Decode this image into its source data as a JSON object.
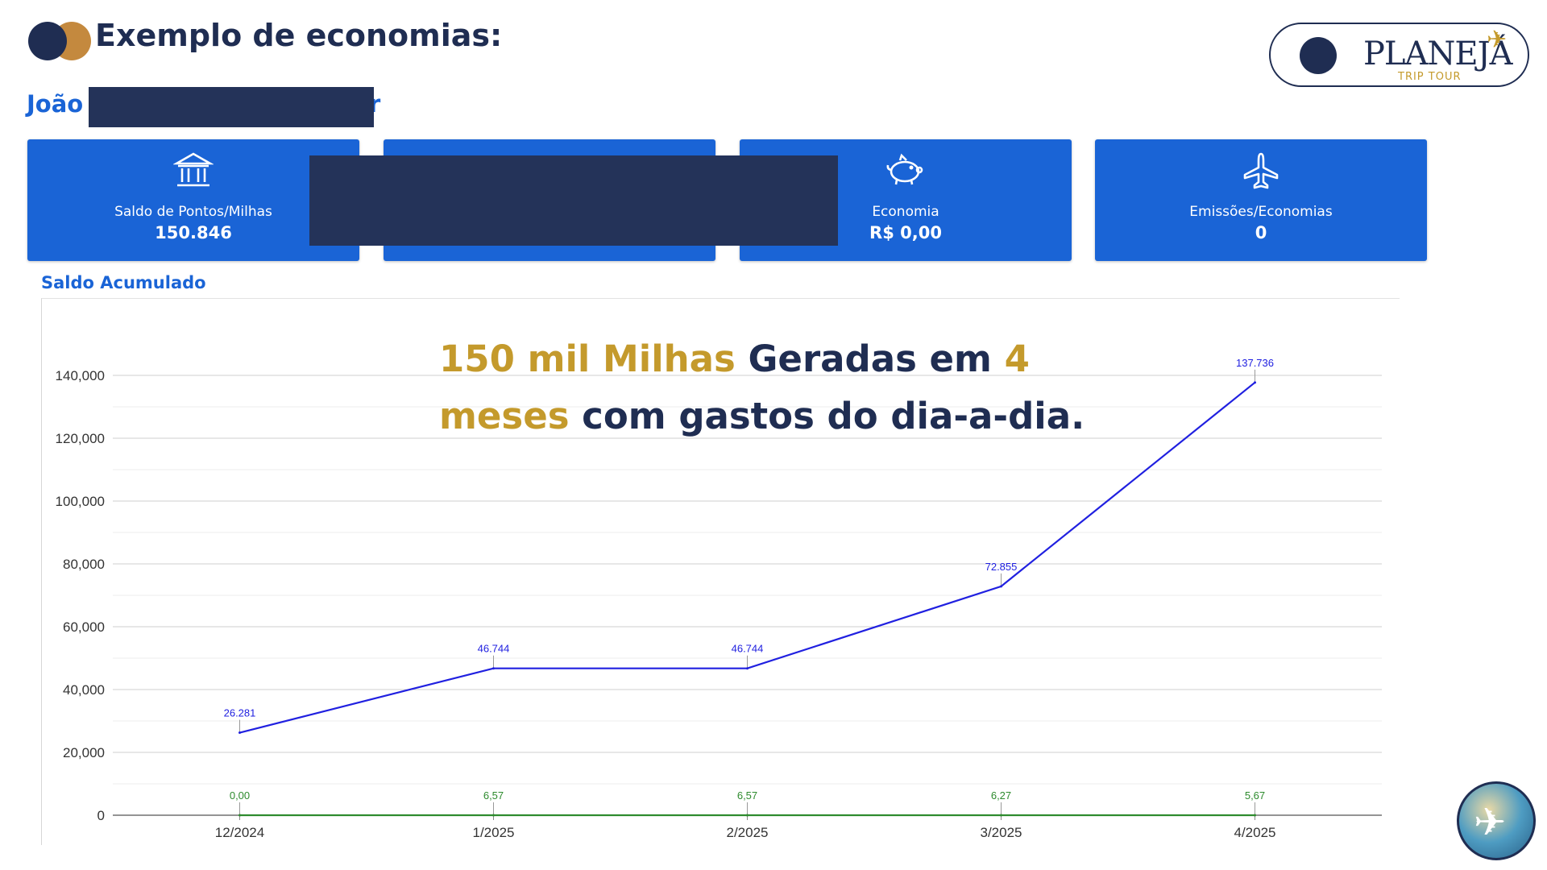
{
  "header": {
    "title": "Exemplo de economias:",
    "user_name": "João",
    "user_name_tail": "r"
  },
  "brand": {
    "name": "PLANEJÁ",
    "subtitle": "TRIP TOUR",
    "accent_color": "#c49a2c",
    "navy_color": "#1f2d52"
  },
  "cards": [
    {
      "icon": "bank-icon",
      "label": "Saldo de Pontos/Milhas",
      "value": "150.846"
    },
    {
      "icon": "",
      "label": "",
      "value": ""
    },
    {
      "icon": "piggy-bank-icon",
      "label": "Economia",
      "value": "R$ 0,00"
    },
    {
      "icon": "airplane-icon",
      "label": "Emissões/Economias",
      "value": "0"
    }
  ],
  "overlay": {
    "line1_gold": "150 mil Milhas",
    "line1_navy": " Geradas em ",
    "line1_gold2": "4",
    "line2_gold": "meses",
    "line2_navy": " com gastos do dia-a-dia."
  },
  "chart_data": {
    "type": "line",
    "title": "Saldo Acumulado",
    "categories": [
      "12/2024",
      "1/2025",
      "2/2025",
      "3/2025",
      "4/2025"
    ],
    "series": [
      {
        "values": [
          26281,
          46744,
          46744,
          72855,
          137736
        ],
        "labels": [
          "26.281",
          "46.744",
          "46.744",
          "72.855",
          "137.736"
        ],
        "color": "#2020e0"
      },
      {
        "values": [
          0,
          6.57,
          6.57,
          6.27,
          5.67
        ],
        "labels": [
          "0,00",
          "6,57",
          "6,57",
          "6,27",
          "5,67"
        ],
        "color": "#2e8b2e"
      }
    ],
    "ylim": [
      0,
      140000
    ],
    "yticks": [
      0,
      20000,
      40000,
      60000,
      80000,
      100000,
      120000,
      140000
    ],
    "ytick_labels": [
      "0",
      "20,000",
      "40,000",
      "60,000",
      "80,000",
      "100,000",
      "120,000",
      "140,000"
    ],
    "grid": true,
    "legend": false
  }
}
